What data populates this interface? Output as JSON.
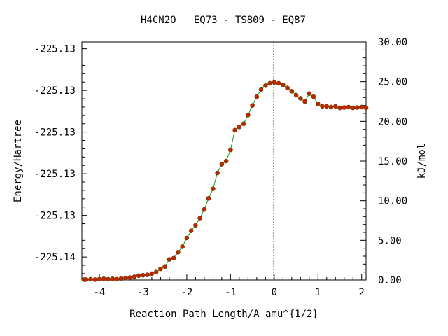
{
  "chart_data": {
    "type": "line",
    "title": "H4CN2O   EQ73 - TS809 - EQ87",
    "xlabel": "Reaction Path Length/A amu^{1/2}",
    "ylabel_left": "Energy/Hartree",
    "ylabel_right": "kJ/mol",
    "xlim": [
      -4.4,
      2.1
    ],
    "ylim_kj": [
      0,
      30
    ],
    "x_ticks": [
      -4,
      -3,
      -2,
      -1,
      0,
      1,
      2
    ],
    "x_tick_labels": [
      "-4",
      "-3",
      "-2",
      "-1",
      "0",
      "1",
      "2"
    ],
    "left_ticks_kj": [
      2.9,
      8.15,
      13.4,
      18.65,
      23.9,
      29.15
    ],
    "left_tick_labels": [
      "-225.14",
      "-225.13",
      "-225.13",
      "-225.13",
      "-225.13",
      "-225.13"
    ],
    "right_ticks_kj": [
      0,
      5,
      10,
      15,
      20,
      25,
      30
    ],
    "right_tick_labels": [
      "0.00",
      "5.00",
      "10.00",
      "15.00",
      "20.00",
      "25.00",
      "30.00"
    ],
    "ts_marker_x": -0.02,
    "grid": false,
    "colors": {
      "line": "#00a000",
      "marker_fill": "#cc2200",
      "marker_edge": "#7a3a00",
      "ts_line": "#999999"
    },
    "series": [
      {
        "values": [
          [
            -4.35,
            0.05
          ],
          [
            -4.3,
            0.05
          ],
          [
            -4.2,
            0.1
          ],
          [
            -4.1,
            0.05
          ],
          [
            -4.0,
            0.1
          ],
          [
            -3.9,
            0.15
          ],
          [
            -3.8,
            0.1
          ],
          [
            -3.7,
            0.15
          ],
          [
            -3.6,
            0.1
          ],
          [
            -3.5,
            0.2
          ],
          [
            -3.4,
            0.25
          ],
          [
            -3.3,
            0.3
          ],
          [
            -3.2,
            0.4
          ],
          [
            -3.1,
            0.55
          ],
          [
            -3.0,
            0.6
          ],
          [
            -2.9,
            0.65
          ],
          [
            -2.8,
            0.8
          ],
          [
            -2.7,
            1.0
          ],
          [
            -2.6,
            1.4
          ],
          [
            -2.5,
            1.7
          ],
          [
            -2.4,
            2.6
          ],
          [
            -2.3,
            2.75
          ],
          [
            -2.2,
            3.5
          ],
          [
            -2.1,
            4.2
          ],
          [
            -2.0,
            5.3
          ],
          [
            -1.9,
            6.2
          ],
          [
            -1.8,
            6.9
          ],
          [
            -1.7,
            7.8
          ],
          [
            -1.6,
            8.9
          ],
          [
            -1.5,
            10.3
          ],
          [
            -1.4,
            11.5
          ],
          [
            -1.3,
            13.5
          ],
          [
            -1.2,
            14.6
          ],
          [
            -1.1,
            15.0
          ],
          [
            -1.0,
            16.4
          ],
          [
            -0.9,
            18.9
          ],
          [
            -0.8,
            19.3
          ],
          [
            -0.7,
            19.7
          ],
          [
            -0.6,
            20.8
          ],
          [
            -0.5,
            22.0
          ],
          [
            -0.4,
            23.1
          ],
          [
            -0.3,
            24.0
          ],
          [
            -0.2,
            24.5
          ],
          [
            -0.1,
            24.8
          ],
          [
            0.0,
            24.9
          ],
          [
            0.1,
            24.8
          ],
          [
            0.2,
            24.6
          ],
          [
            0.3,
            24.2
          ],
          [
            0.4,
            23.8
          ],
          [
            0.5,
            23.3
          ],
          [
            0.6,
            22.9
          ],
          [
            0.7,
            22.5
          ],
          [
            0.8,
            23.5
          ],
          [
            0.9,
            23.1
          ],
          [
            1.0,
            22.2
          ],
          [
            1.1,
            21.9
          ],
          [
            1.2,
            21.9
          ],
          [
            1.3,
            21.8
          ],
          [
            1.4,
            21.9
          ],
          [
            1.5,
            21.7
          ],
          [
            1.6,
            21.75
          ],
          [
            1.7,
            21.8
          ],
          [
            1.8,
            21.7
          ],
          [
            1.9,
            21.75
          ],
          [
            2.0,
            21.8
          ],
          [
            2.1,
            21.7
          ]
        ]
      }
    ]
  }
}
